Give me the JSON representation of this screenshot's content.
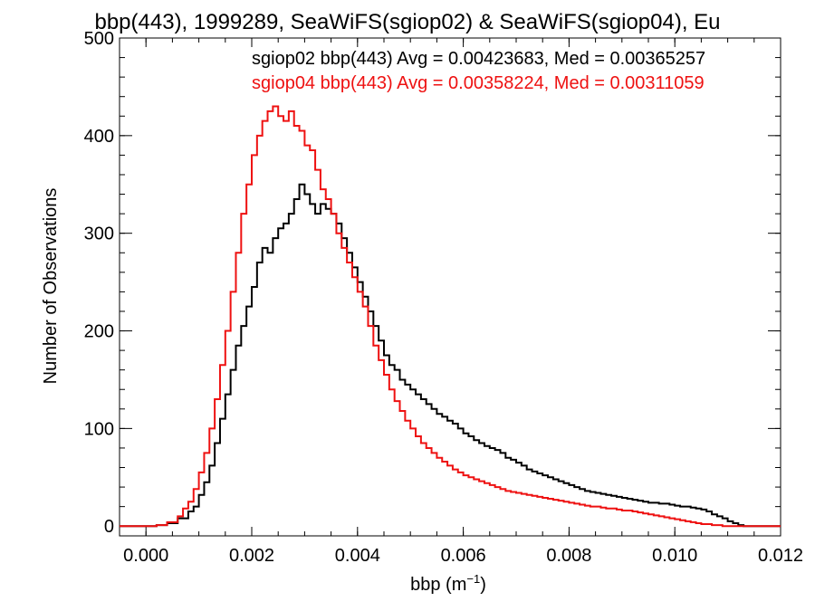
{
  "chart_data": {
    "type": "line",
    "title": "bbp(443), 1999289, SeaWiFS(sgiop02) & SeaWiFS(sgiop04), Eu",
    "xlabel_main": "bbp (m",
    "xlabel_sup": "−1",
    "xlabel_tail": ")",
    "ylabel": "Number of Observations",
    "xlim": [
      -0.0005,
      0.012
    ],
    "ylim": [
      -10,
      500
    ],
    "x_ticks": [
      0.0,
      0.002,
      0.004,
      0.006,
      0.008,
      0.01,
      0.012
    ],
    "x_tick_labels": [
      "0.000",
      "0.002",
      "0.004",
      "0.006",
      "0.008",
      "0.010",
      "0.012"
    ],
    "y_ticks": [
      0,
      100,
      200,
      300,
      400,
      500
    ],
    "y_tick_labels": [
      "0",
      "100",
      "200",
      "300",
      "400",
      "500"
    ],
    "grid": false,
    "legend_position": "top-right",
    "annotations": [
      {
        "text": "sgiop02 bbp(443) Avg = 0.00423683, Med = 0.00365257",
        "color": "#000000"
      },
      {
        "text": "sgiop04 bbp(443) Avg = 0.00358224, Med = 0.00311059",
        "color": "#ee1111"
      }
    ],
    "series": [
      {
        "color": "#000000",
        "x": [
          -0.0005,
          0.0,
          0.0002,
          0.0004,
          0.0006,
          0.0008,
          0.0009,
          0.001,
          0.0011,
          0.0012,
          0.0013,
          0.0014,
          0.0015,
          0.0016,
          0.0017,
          0.0018,
          0.0019,
          0.002,
          0.0021,
          0.0022,
          0.0023,
          0.0024,
          0.0025,
          0.0026,
          0.0027,
          0.0028,
          0.0029,
          0.003,
          0.0031,
          0.0032,
          0.0033,
          0.0034,
          0.0035,
          0.0036,
          0.0037,
          0.0038,
          0.0039,
          0.004,
          0.0041,
          0.0042,
          0.0043,
          0.0044,
          0.0045,
          0.0046,
          0.0047,
          0.0048,
          0.0049,
          0.005,
          0.0051,
          0.0052,
          0.0053,
          0.0054,
          0.0055,
          0.0056,
          0.0057,
          0.0058,
          0.0059,
          0.006,
          0.0061,
          0.0062,
          0.0063,
          0.0064,
          0.0065,
          0.0066,
          0.0067,
          0.0068,
          0.0069,
          0.007,
          0.0071,
          0.0072,
          0.0073,
          0.0074,
          0.0075,
          0.0076,
          0.0077,
          0.0078,
          0.0079,
          0.008,
          0.0081,
          0.0082,
          0.0083,
          0.0084,
          0.0085,
          0.0086,
          0.0087,
          0.0088,
          0.0089,
          0.009,
          0.0091,
          0.0092,
          0.0093,
          0.0094,
          0.0095,
          0.0096,
          0.0097,
          0.0098,
          0.0099,
          0.01,
          0.0101,
          0.0102,
          0.0103,
          0.0104,
          0.0105,
          0.0106,
          0.0107,
          0.0108,
          0.0109,
          0.011,
          0.0111,
          0.0112,
          0.0113,
          0.0114,
          0.0116,
          0.0118,
          0.012
        ],
        "y": [
          0,
          0,
          1,
          3,
          8,
          15,
          20,
          32,
          45,
          62,
          85,
          110,
          135,
          160,
          185,
          205,
          225,
          245,
          270,
          285,
          280,
          295,
          305,
          310,
          320,
          335,
          350,
          340,
          330,
          320,
          330,
          325,
          320,
          310,
          295,
          280,
          265,
          250,
          235,
          220,
          205,
          190,
          175,
          165,
          160,
          150,
          145,
          140,
          135,
          130,
          125,
          120,
          115,
          112,
          108,
          105,
          100,
          95,
          92,
          88,
          85,
          82,
          80,
          78,
          75,
          70,
          68,
          65,
          62,
          58,
          56,
          54,
          52,
          50,
          48,
          46,
          44,
          42,
          40,
          38,
          36,
          35,
          34,
          33,
          32,
          31,
          30,
          29,
          28,
          27,
          26,
          25,
          24,
          24,
          23,
          23,
          22,
          21,
          20,
          20,
          19,
          18,
          17,
          15,
          12,
          10,
          8,
          5,
          3,
          1,
          0,
          0,
          0,
          0,
          0
        ]
      },
      {
        "color": "#ee1111",
        "x": [
          -0.0005,
          0.0,
          0.0002,
          0.0004,
          0.0006,
          0.0007,
          0.0008,
          0.0009,
          0.001,
          0.0011,
          0.0012,
          0.0013,
          0.0014,
          0.0015,
          0.0016,
          0.0017,
          0.0018,
          0.0019,
          0.002,
          0.0021,
          0.0022,
          0.0023,
          0.0024,
          0.0025,
          0.0026,
          0.0027,
          0.0028,
          0.0029,
          0.003,
          0.0031,
          0.0032,
          0.0033,
          0.0034,
          0.0035,
          0.0036,
          0.0037,
          0.0038,
          0.0039,
          0.004,
          0.0041,
          0.0042,
          0.0043,
          0.0044,
          0.0045,
          0.0046,
          0.0047,
          0.0048,
          0.0049,
          0.005,
          0.0051,
          0.0052,
          0.0053,
          0.0054,
          0.0055,
          0.0056,
          0.0057,
          0.0058,
          0.0059,
          0.006,
          0.0061,
          0.0062,
          0.0063,
          0.0064,
          0.0065,
          0.0066,
          0.0067,
          0.0068,
          0.0069,
          0.007,
          0.0071,
          0.0072,
          0.0073,
          0.0074,
          0.0075,
          0.0076,
          0.0077,
          0.0078,
          0.0079,
          0.008,
          0.0081,
          0.0082,
          0.0083,
          0.0084,
          0.0085,
          0.0086,
          0.0087,
          0.0088,
          0.0089,
          0.009,
          0.0091,
          0.0092,
          0.0093,
          0.0094,
          0.0095,
          0.0096,
          0.0097,
          0.0098,
          0.0099,
          0.01,
          0.0101,
          0.0102,
          0.0103,
          0.0104,
          0.0105,
          0.0106,
          0.0107,
          0.0108,
          0.0109,
          0.011,
          0.0111,
          0.0112,
          0.0114,
          0.0116,
          0.0118,
          0.012
        ],
        "y": [
          0,
          0,
          1,
          4,
          10,
          18,
          25,
          38,
          55,
          75,
          100,
          130,
          165,
          200,
          240,
          280,
          320,
          350,
          380,
          400,
          415,
          425,
          430,
          420,
          415,
          425,
          410,
          405,
          390,
          385,
          365,
          345,
          335,
          320,
          300,
          285,
          270,
          255,
          240,
          225,
          205,
          185,
          170,
          155,
          140,
          128,
          118,
          108,
          100,
          92,
          85,
          80,
          75,
          70,
          66,
          62,
          58,
          55,
          52,
          50,
          48,
          46,
          44,
          42,
          40,
          38,
          36,
          35,
          34,
          33,
          32,
          31,
          30,
          29,
          28,
          27,
          26,
          25,
          24,
          23,
          22,
          21,
          20,
          20,
          19,
          18,
          18,
          17,
          16,
          16,
          15,
          14,
          13,
          12,
          11,
          10,
          9,
          8,
          7,
          6,
          5,
          4,
          3,
          2,
          2,
          1,
          1,
          0,
          0,
          0,
          0,
          0,
          0,
          0,
          0
        ]
      }
    ]
  }
}
